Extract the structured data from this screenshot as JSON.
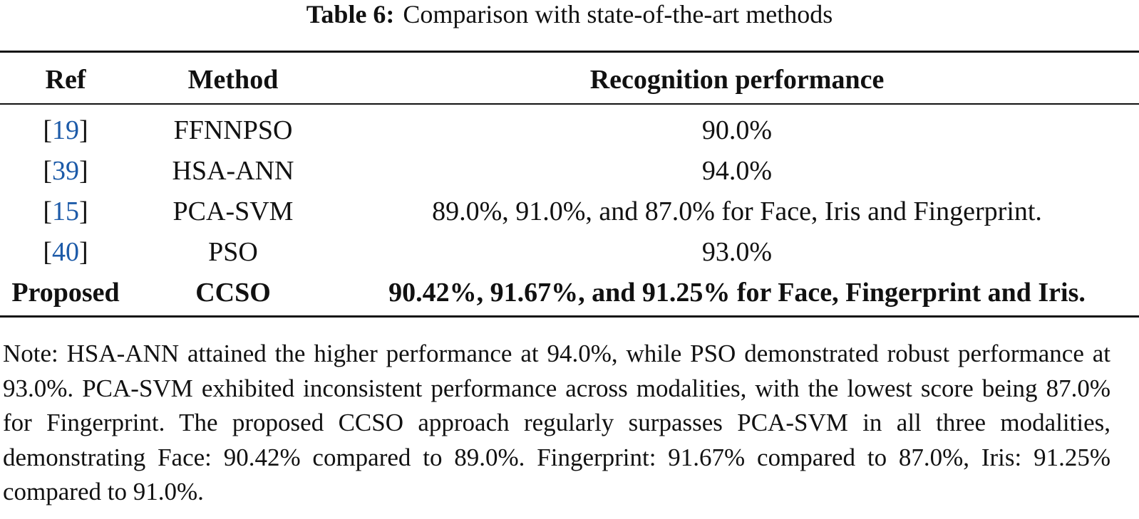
{
  "caption": {
    "label": "Table 6:",
    "text": "Comparison with state-of-the-art methods"
  },
  "table": {
    "headers": {
      "ref": "Ref",
      "method": "Method",
      "performance": "Recognition performance"
    },
    "rows": [
      {
        "ref": "19",
        "method": "FFNNPSO",
        "performance": "90.0%"
      },
      {
        "ref": "39",
        "method": "HSA-ANN",
        "performance": "94.0%"
      },
      {
        "ref": "15",
        "method": "PCA-SVM",
        "performance": "89.0%, 91.0%, and 87.0% for Face, Iris and Fingerprint."
      },
      {
        "ref": "40",
        "method": "PSO",
        "performance": "93.0%"
      }
    ],
    "proposed": {
      "ref": "Proposed",
      "method": "CCSO",
      "performance": "90.42%, 91.67%, and 91.25% for Face, Fingerprint and Iris."
    }
  },
  "note": "Note: HSA-ANN attained the higher performance at 94.0%, while PSO demonstrated robust performance at 93.0%. PCA-SVM exhibited inconsistent performance across modalities, with the lowest score being 87.0% for Fingerprint. The proposed CCSO approach regularly surpasses PCA-SVM in all three modalities, demonstrating Face: 90.42% compared to 89.0%. Fingerprint: 91.67% compared to 87.0%, Iris: 91.25% compared to 91.0%.",
  "colors": {
    "link": "#1c5aa8",
    "text": "#111111",
    "background": "#ffffff"
  }
}
